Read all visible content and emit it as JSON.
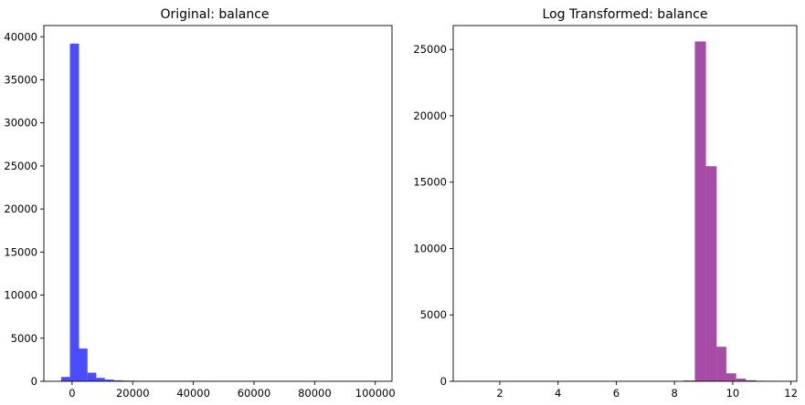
{
  "chart_data": [
    {
      "type": "bar",
      "title": "Original: balance",
      "xlabel": "",
      "ylabel": "",
      "color": "#0000ff",
      "opacity": 0.7,
      "xlim": [
        -9300,
        105500
      ],
      "ylim": [
        0,
        41300
      ],
      "xticks": [
        0,
        20000,
        40000,
        60000,
        80000,
        100000
      ],
      "yticks": [
        0,
        5000,
        10000,
        15000,
        20000,
        25000,
        30000,
        35000,
        40000
      ],
      "grid": false,
      "bins": [
        {
          "x0": -3600,
          "x1": -700,
          "value": 500
        },
        {
          "x0": -700,
          "x1": 2300,
          "value": 39200
        },
        {
          "x0": 2300,
          "x1": 5100,
          "value": 3800
        },
        {
          "x0": 5100,
          "x1": 8000,
          "value": 1000
        },
        {
          "x0": 8000,
          "x1": 10800,
          "value": 400
        },
        {
          "x0": 10800,
          "x1": 13700,
          "value": 200
        },
        {
          "x0": 13700,
          "x1": 16500,
          "value": 120
        },
        {
          "x0": 16500,
          "x1": 19400,
          "value": 80
        },
        {
          "x0": 19400,
          "x1": 22300,
          "value": 60
        },
        {
          "x0": 22300,
          "x1": 25100,
          "value": 50
        },
        {
          "x0": 25100,
          "x1": 28000,
          "value": 40
        },
        {
          "x0": 28000,
          "x1": 30800,
          "value": 40
        },
        {
          "x0": 30800,
          "x1": 33700,
          "value": 30
        },
        {
          "x0": 33700,
          "x1": 36500,
          "value": 30
        },
        {
          "x0": 36500,
          "x1": 39400,
          "value": 25
        },
        {
          "x0": 39400,
          "x1": 42300,
          "value": 40
        },
        {
          "x0": 42300,
          "x1": 45100,
          "value": 30
        },
        {
          "x0": 45100,
          "x1": 48000,
          "value": 10
        },
        {
          "x0": 48000,
          "x1": 50800,
          "value": 5
        },
        {
          "x0": 50800,
          "x1": 53700,
          "value": 20
        },
        {
          "x0": 53700,
          "x1": 56500,
          "value": 5
        },
        {
          "x0": 56500,
          "x1": 59400,
          "value": 10
        },
        {
          "x0": 59400,
          "x1": 62300,
          "value": 25
        },
        {
          "x0": 62300,
          "x1": 65100,
          "value": 5
        }
      ]
    },
    {
      "type": "bar",
      "title": "Log Transformed: balance",
      "xlabel": "",
      "ylabel": "",
      "color": "#800080",
      "opacity": 0.7,
      "xlim": [
        0.4,
        12.2
      ],
      "ylim": [
        0,
        26800
      ],
      "xticks": [
        2,
        4,
        6,
        8,
        10,
        12
      ],
      "yticks": [
        0,
        5000,
        10000,
        15000,
        20000,
        25000
      ],
      "grid": false,
      "bins": [
        {
          "x0": 8.3,
          "x1": 8.7,
          "value": 60
        },
        {
          "x0": 8.7,
          "x1": 9.08,
          "value": 25600
        },
        {
          "x0": 9.08,
          "x1": 9.45,
          "value": 16200
        },
        {
          "x0": 9.45,
          "x1": 9.78,
          "value": 2600
        },
        {
          "x0": 9.78,
          "x1": 10.12,
          "value": 600
        },
        {
          "x0": 10.12,
          "x1": 10.45,
          "value": 200
        },
        {
          "x0": 10.45,
          "x1": 10.8,
          "value": 80
        },
        {
          "x0": 10.8,
          "x1": 11.13,
          "value": 40
        },
        {
          "x0": 11.13,
          "x1": 11.47,
          "value": 25
        }
      ]
    }
  ]
}
